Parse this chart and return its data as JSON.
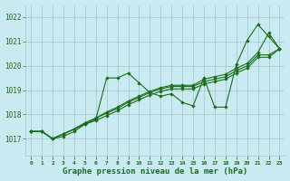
{
  "title": "Graphe pression niveau de la mer (hPa)",
  "background_color": "#c8eaf0",
  "grid_color": "#a0c8c8",
  "line_color": "#1a6e1a",
  "text_color": "#1a6e1a",
  "xlim": [
    -0.5,
    23.5
  ],
  "ylim": [
    1016.3,
    1022.5
  ],
  "yticks": [
    1017,
    1018,
    1019,
    1020,
    1021,
    1022
  ],
  "xticks": [
    0,
    1,
    2,
    3,
    4,
    5,
    6,
    7,
    8,
    9,
    10,
    11,
    12,
    13,
    14,
    15,
    16,
    17,
    18,
    19,
    20,
    21,
    22,
    23
  ],
  "series": [
    [
      1017.3,
      1017.3,
      1017.0,
      1017.1,
      1017.3,
      1017.6,
      1017.8,
      1019.5,
      1019.5,
      1019.7,
      1019.3,
      1018.9,
      1018.75,
      1018.85,
      1018.5,
      1018.35,
      1019.5,
      1018.3,
      1018.3,
      1020.05,
      1021.05,
      1021.7,
      1021.2,
      1020.7
    ],
    [
      1017.3,
      1017.3,
      1017.0,
      1017.2,
      1017.4,
      1017.65,
      1017.85,
      1018.1,
      1018.3,
      1018.55,
      1018.75,
      1018.95,
      1019.1,
      1019.2,
      1019.2,
      1019.2,
      1019.45,
      1019.55,
      1019.65,
      1019.9,
      1020.1,
      1020.55,
      1021.35,
      1020.7
    ],
    [
      1017.3,
      1017.3,
      1017.0,
      1017.2,
      1017.4,
      1017.65,
      1017.85,
      1018.05,
      1018.25,
      1018.5,
      1018.7,
      1018.9,
      1019.05,
      1019.15,
      1019.15,
      1019.15,
      1019.35,
      1019.45,
      1019.55,
      1019.8,
      1020.0,
      1020.45,
      1020.45,
      1020.7
    ],
    [
      1017.3,
      1017.3,
      1017.0,
      1017.2,
      1017.4,
      1017.6,
      1017.75,
      1017.95,
      1018.15,
      1018.4,
      1018.6,
      1018.8,
      1018.95,
      1019.05,
      1019.05,
      1019.05,
      1019.25,
      1019.35,
      1019.45,
      1019.7,
      1019.9,
      1020.35,
      1020.35,
      1020.7
    ]
  ]
}
